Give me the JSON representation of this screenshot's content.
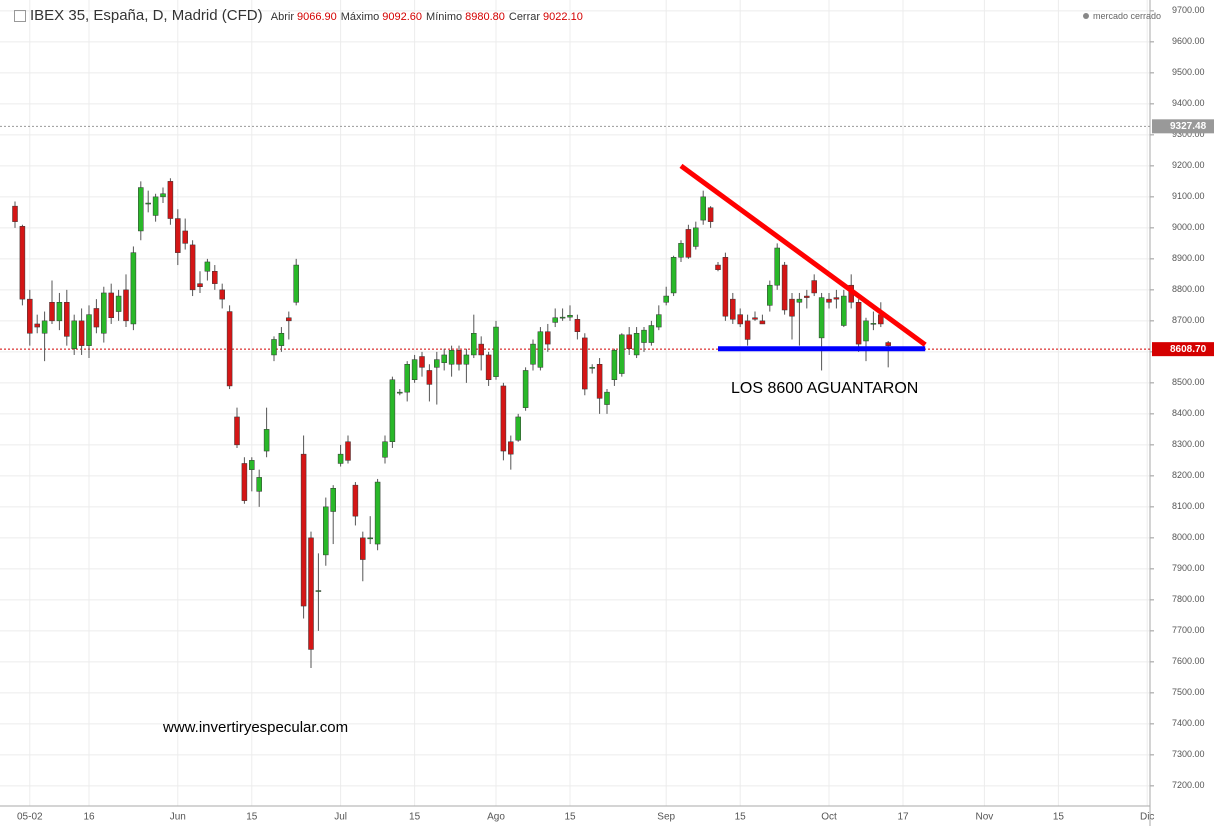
{
  "chart_data": {
    "type": "candlestick",
    "title": "IBEX 35, España, D, Madrid (CFD)",
    "info": [
      {
        "label": "Abrir",
        "value": "9066.90"
      },
      {
        "label": "Máximo",
        "value": "9092.60"
      },
      {
        "label": "Mínimo",
        "value": "8980.80"
      },
      {
        "label": "Cerrar",
        "value": "9022.10"
      }
    ],
    "status": "mercado cerrado",
    "up_color": "#29b829",
    "down_color": "#d41616",
    "categories": [
      null,
      null,
      "05-02",
      null,
      null,
      null,
      null,
      null,
      null,
      null,
      "16",
      null,
      null,
      null,
      null,
      null,
      null,
      null,
      null,
      null,
      null,
      null,
      "Jun",
      null,
      null,
      null,
      null,
      null,
      null,
      null,
      null,
      null,
      "15",
      null,
      null,
      null,
      null,
      null,
      null,
      null,
      null,
      null,
      null,
      null,
      "Jul",
      null,
      null,
      null,
      null,
      null,
      null,
      null,
      null,
      null,
      "15",
      null,
      null,
      null,
      null,
      null,
      null,
      null,
      null,
      null,
      null,
      "Ago",
      null,
      null,
      null,
      null,
      null,
      null,
      null,
      null,
      null,
      "15",
      null,
      null,
      null,
      null,
      null,
      null,
      null,
      null,
      null,
      null,
      null,
      null,
      "Sep",
      null,
      null,
      null,
      null,
      null,
      null,
      null,
      null,
      null,
      "15",
      null,
      null,
      null,
      null,
      null,
      null,
      null,
      null,
      null,
      null,
      null,
      "Oct",
      null,
      null,
      null,
      null,
      null,
      null,
      null,
      null,
      null,
      "17",
      null,
      null,
      null,
      null,
      null,
      null,
      null,
      null,
      null,
      null,
      "Nov",
      null,
      null,
      null,
      null,
      null,
      null,
      null,
      null,
      null,
      "15",
      null,
      null,
      null,
      null,
      null,
      null,
      null,
      null,
      null,
      null,
      null,
      "Dic",
      null
    ],
    "ohlc": [
      [
        9070,
        9085,
        9000,
        9020
      ],
      [
        9005,
        9010,
        8750,
        8770
      ],
      [
        8770,
        8800,
        8620,
        8660
      ],
      [
        8690,
        8720,
        8660,
        8680
      ],
      [
        8660,
        8730,
        8570,
        8700
      ],
      [
        8760,
        8830,
        8690,
        8700
      ],
      [
        8700,
        8790,
        8670,
        8760
      ],
      [
        8760,
        8800,
        8620,
        8650
      ],
      [
        8610,
        8720,
        8590,
        8700
      ],
      [
        8700,
        8740,
        8590,
        8620
      ],
      [
        8620,
        8750,
        8580,
        8720
      ],
      [
        8740,
        8770,
        8660,
        8680
      ],
      [
        8660,
        8810,
        8630,
        8790
      ],
      [
        8790,
        8820,
        8690,
        8710
      ],
      [
        8730,
        8800,
        8700,
        8780
      ],
      [
        8800,
        8850,
        8680,
        8700
      ],
      [
        8690,
        8940,
        8670,
        8920
      ],
      [
        8990,
        9150,
        8960,
        9130
      ],
      [
        9080,
        9120,
        9050,
        9080
      ],
      [
        9040,
        9110,
        9020,
        9100
      ],
      [
        9100,
        9130,
        9080,
        9110
      ],
      [
        9150,
        9160,
        9010,
        9030
      ],
      [
        9030,
        9060,
        8880,
        8920
      ],
      [
        8990,
        9030,
        8930,
        8950
      ],
      [
        8945,
        8960,
        8780,
        8800
      ],
      [
        8820,
        8860,
        8790,
        8810
      ],
      [
        8860,
        8900,
        8830,
        8890
      ],
      [
        8860,
        8880,
        8800,
        8820
      ],
      [
        8800,
        8820,
        8740,
        8770
      ],
      [
        8730,
        8750,
        8480,
        8490
      ],
      [
        8390,
        8420,
        8290,
        8300
      ],
      [
        8240,
        8260,
        8110,
        8120
      ],
      [
        8220,
        8260,
        8150,
        8250
      ],
      [
        8150,
        8220,
        8100,
        8195
      ],
      [
        8280,
        8420,
        8260,
        8350
      ],
      [
        8590,
        8650,
        8570,
        8640
      ],
      [
        8620,
        8680,
        8600,
        8660
      ],
      [
        8710,
        8730,
        8640,
        8700
      ],
      [
        8760,
        8900,
        8750,
        8880
      ],
      [
        8270,
        8330,
        7740,
        7780
      ],
      [
        8000,
        8020,
        7580,
        7640
      ],
      [
        7830,
        7950,
        7700,
        7830
      ],
      [
        7945,
        8130,
        7910,
        8100
      ],
      [
        8085,
        8170,
        7980,
        8160
      ],
      [
        8240,
        8300,
        8230,
        8270
      ],
      [
        8310,
        8330,
        8240,
        8250
      ],
      [
        8170,
        8180,
        8040,
        8070
      ],
      [
        8000,
        8020,
        7860,
        7930
      ],
      [
        8000,
        8070,
        7980,
        8000
      ],
      [
        7980,
        8190,
        7960,
        8180
      ],
      [
        8260,
        8330,
        8240,
        8310
      ],
      [
        8310,
        8520,
        8290,
        8510
      ],
      [
        8470,
        8480,
        8460,
        8470
      ],
      [
        8470,
        8570,
        8440,
        8560
      ],
      [
        8510,
        8590,
        8500,
        8575
      ],
      [
        8585,
        8600,
        8520,
        8550
      ],
      [
        8540,
        8560,
        8440,
        8495
      ],
      [
        8550,
        8600,
        8430,
        8575
      ],
      [
        8565,
        8610,
        8540,
        8590
      ],
      [
        8560,
        8620,
        8520,
        8605
      ],
      [
        8605,
        8620,
        8540,
        8560
      ],
      [
        8560,
        8610,
        8500,
        8590
      ],
      [
        8590,
        8720,
        8580,
        8660
      ],
      [
        8625,
        8650,
        8540,
        8590
      ],
      [
        8590,
        8600,
        8490,
        8510
      ],
      [
        8520,
        8700,
        8510,
        8680
      ],
      [
        8490,
        8500,
        8250,
        8280
      ],
      [
        8310,
        8330,
        8220,
        8270
      ],
      [
        8315,
        8400,
        8310,
        8390
      ],
      [
        8420,
        8550,
        8410,
        8540
      ],
      [
        8560,
        8640,
        8540,
        8625
      ],
      [
        8550,
        8680,
        8540,
        8665
      ],
      [
        8665,
        8690,
        8600,
        8625
      ],
      [
        8695,
        8740,
        8680,
        8710
      ],
      [
        8710,
        8740,
        8700,
        8712
      ],
      [
        8712,
        8750,
        8700,
        8718
      ],
      [
        8705,
        8720,
        8640,
        8665
      ],
      [
        8645,
        8660,
        8460,
        8480
      ],
      [
        8550,
        8560,
        8530,
        8550
      ],
      [
        8560,
        8580,
        8400,
        8450
      ],
      [
        8430,
        8480,
        8400,
        8470
      ],
      [
        8510,
        8610,
        8490,
        8605
      ],
      [
        8530,
        8660,
        8520,
        8655
      ],
      [
        8655,
        8680,
        8590,
        8610
      ],
      [
        8590,
        8680,
        8580,
        8660
      ],
      [
        8630,
        8680,
        8600,
        8670
      ],
      [
        8630,
        8700,
        8620,
        8685
      ],
      [
        8680,
        8750,
        8670,
        8720
      ],
      [
        8760,
        8810,
        8750,
        8780
      ],
      [
        8790,
        8910,
        8780,
        8905
      ],
      [
        8905,
        8960,
        8890,
        8950
      ],
      [
        8995,
        9010,
        8900,
        8905
      ],
      [
        8940,
        9020,
        8930,
        9000
      ],
      [
        9025,
        9120,
        9010,
        9100
      ],
      [
        9065,
        9070,
        9000,
        9020
      ],
      [
        8880,
        8890,
        8860,
        8865
      ],
      [
        8905,
        8920,
        8700,
        8715
      ],
      [
        8770,
        8790,
        8690,
        8705
      ],
      [
        8720,
        8740,
        8680,
        8690
      ],
      [
        8700,
        8720,
        8620,
        8640
      ],
      [
        8710,
        8730,
        8700,
        8705
      ],
      [
        8700,
        8720,
        8690,
        8690
      ],
      [
        8750,
        8830,
        8730,
        8815
      ],
      [
        8815,
        8950,
        8800,
        8935
      ],
      [
        8880,
        8890,
        8720,
        8735
      ],
      [
        8770,
        8790,
        8640,
        8715
      ],
      [
        8760,
        8790,
        8620,
        8770
      ],
      [
        8780,
        8800,
        8740,
        8775
      ],
      [
        8830,
        8850,
        8780,
        8790
      ],
      [
        8645,
        8790,
        8540,
        8775
      ],
      [
        8770,
        8790,
        8740,
        8760
      ],
      [
        8775,
        8800,
        8740,
        8770
      ],
      [
        8685,
        8800,
        8680,
        8780
      ],
      [
        8815,
        8850,
        8740,
        8760
      ],
      [
        8760,
        8770,
        8600,
        8625
      ],
      [
        8635,
        8710,
        8570,
        8700
      ],
      [
        8690,
        8730,
        8670,
        8692
      ],
      [
        8720,
        8760,
        8680,
        8690
      ],
      [
        8630,
        8635,
        8550,
        8620
      ],
      null,
      null,
      null,
      null,
      null,
      null,
      null,
      null,
      null,
      null,
      null,
      null,
      null,
      null,
      null,
      null,
      null,
      null,
      null,
      null,
      null,
      null,
      null,
      null,
      null,
      null,
      null,
      null,
      null,
      null,
      null,
      null,
      null,
      null,
      null,
      null
    ],
    "ylim": [
      7135,
      9735
    ],
    "yticks": [
      {
        "value": 7200,
        "label": "7200.00"
      },
      {
        "value": 7300,
        "label": "7300.00"
      },
      {
        "value": 7400,
        "label": "7400.00"
      },
      {
        "value": 7500,
        "label": "7500.00"
      },
      {
        "value": 7600,
        "label": "7600.00"
      },
      {
        "value": 7700,
        "label": "7700.00"
      },
      {
        "value": 7800,
        "label": "7800.00"
      },
      {
        "value": 7900,
        "label": "7900.00"
      },
      {
        "value": 8000,
        "label": "8000.00"
      },
      {
        "value": 8100,
        "label": "8100.00"
      },
      {
        "value": 8200,
        "label": "8200.00"
      },
      {
        "value": 8300,
        "label": "8300.00"
      },
      {
        "value": 8400,
        "label": "8400.00"
      },
      {
        "value": 8500,
        "label": "8500.00"
      },
      {
        "value": 8600,
        "label": "8600.00"
      },
      {
        "value": 8700,
        "label": "8700.00"
      },
      {
        "value": 8800,
        "label": "8800.00"
      },
      {
        "value": 8900,
        "label": "8900.00"
      },
      {
        "value": 9000,
        "label": "9000.00"
      },
      {
        "value": 9100,
        "label": "9100.00"
      },
      {
        "value": 9200,
        "label": "9200.00"
      },
      {
        "value": 9300,
        "label": "9300.00"
      },
      {
        "value": 9400,
        "label": "9400.00"
      },
      {
        "value": 9500,
        "label": "9500.00"
      },
      {
        "value": 9600,
        "label": "9600.00"
      },
      {
        "value": 9700,
        "label": "9700.00"
      }
    ],
    "grid": true,
    "price_lines": [
      {
        "value": 9327.48,
        "label": "9327.48",
        "color": "#999999"
      },
      {
        "value": 8608.7,
        "label": "8608.70",
        "color": "#d40000"
      }
    ],
    "lines": [
      {
        "color": "#ff0000",
        "x": [
          90,
          123
        ],
        "values": [
          9200,
          8623
        ]
      },
      {
        "color": "#0000ff",
        "x": [
          95,
          123
        ],
        "values": [
          8610,
          8610
        ]
      }
    ],
    "annotations": [
      "LOS 8600 AGUANTARON",
      "www.invertiryespecular.com"
    ]
  }
}
